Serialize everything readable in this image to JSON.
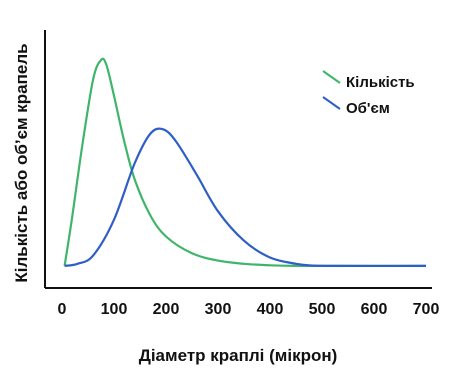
{
  "chart_data": {
    "type": "line",
    "xlabel": "Діаметр краплі (мікрон)",
    "ylabel": "Кількість або об’єм крапель",
    "xlim": [
      0,
      700
    ],
    "x_ticks": [
      "0",
      "100",
      "200",
      "300",
      "400",
      "500",
      "600",
      "700"
    ],
    "y_ticks_labeled": false,
    "grid": false,
    "legend_position": "top-right",
    "series": [
      {
        "name": "Кількість",
        "color": "#3fb56a",
        "x": [
          5,
          20,
          40,
          60,
          75,
          85,
          100,
          120,
          140,
          170,
          200,
          250,
          300,
          350,
          400,
          450,
          500,
          700
        ],
        "y": [
          0.01,
          0.25,
          0.6,
          0.9,
          0.99,
          0.97,
          0.82,
          0.6,
          0.42,
          0.25,
          0.15,
          0.07,
          0.035,
          0.02,
          0.013,
          0.01,
          0.01,
          0.01
        ]
      },
      {
        "name": "Об'єм",
        "color": "#2f5fc6",
        "x": [
          5,
          30,
          60,
          100,
          140,
          170,
          195,
          220,
          260,
          300,
          350,
          400,
          450,
          480,
          520,
          700
        ],
        "y": [
          0.01,
          0.02,
          0.06,
          0.23,
          0.5,
          0.64,
          0.66,
          0.6,
          0.44,
          0.27,
          0.13,
          0.05,
          0.02,
          0.012,
          0.01,
          0.01
        ]
      }
    ]
  }
}
